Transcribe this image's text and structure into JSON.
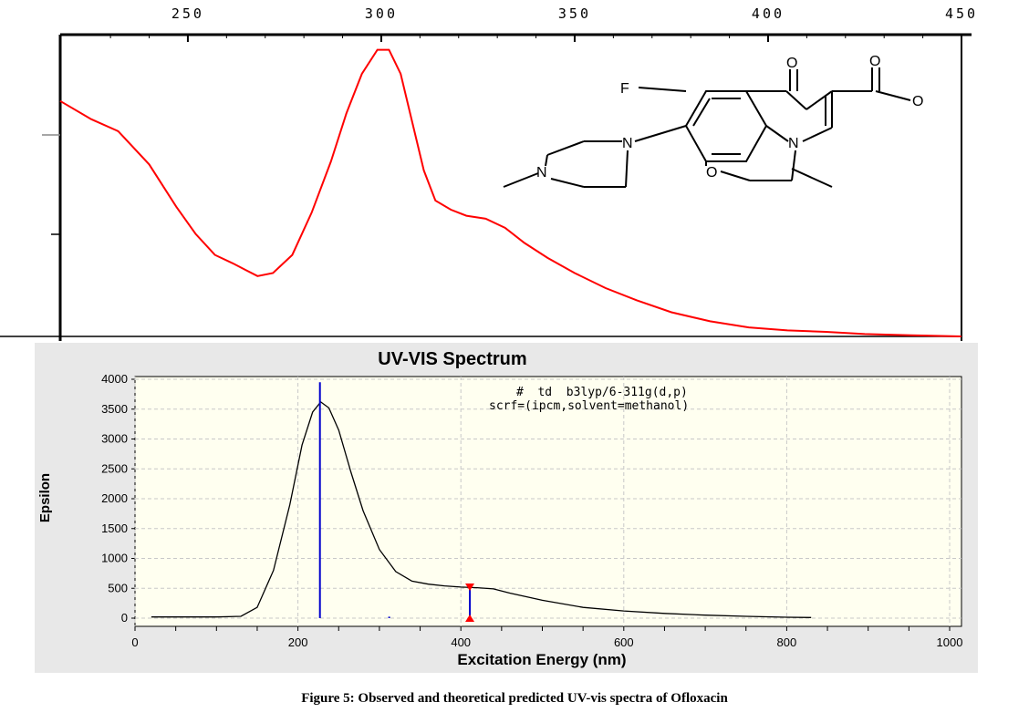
{
  "caption": "Figure 5: Observed and theoretical predicted UV-vis spectra of Ofloxacin",
  "chart_data": [
    {
      "type": "line",
      "title": "",
      "xlabel": "",
      "ylabel": "",
      "xlim": [
        217,
        450
      ],
      "ylim": [
        0,
        1
      ],
      "x_ticks": [
        "250",
        "300",
        "350",
        "400",
        "450"
      ],
      "grid": false,
      "series": [
        {
          "color": "#ff0000",
          "x": [
            217,
            225,
            232,
            240,
            247,
            252,
            257,
            262,
            265,
            268,
            272,
            277,
            282,
            287,
            291,
            295,
            299,
            302,
            305,
            308,
            311,
            314,
            318,
            322,
            327,
            332,
            337,
            343,
            350,
            358,
            366,
            375,
            385,
            395,
            405,
            415,
            425,
            437,
            450
          ],
          "y": [
            0.78,
            0.72,
            0.68,
            0.57,
            0.43,
            0.34,
            0.27,
            0.24,
            0.22,
            0.2,
            0.21,
            0.27,
            0.41,
            0.58,
            0.74,
            0.87,
            0.95,
            0.95,
            0.87,
            0.71,
            0.55,
            0.45,
            0.42,
            0.4,
            0.39,
            0.36,
            0.31,
            0.26,
            0.21,
            0.16,
            0.12,
            0.08,
            0.05,
            0.03,
            0.02,
            0.015,
            0.008,
            0.004,
            0.0
          ]
        }
      ]
    },
    {
      "type": "line",
      "title": "UV-VIS Spectrum",
      "xlabel": "Excitation Energy (nm)",
      "ylabel": "Epsilon",
      "xlim": [
        0,
        1000
      ],
      "ylim": [
        0,
        4000
      ],
      "x_ticks": [
        0,
        200,
        400,
        600,
        800,
        1000
      ],
      "y_ticks": [
        0,
        500,
        1000,
        1500,
        2000,
        2500,
        3000,
        3500,
        4000
      ],
      "grid": true,
      "annotation": [
        "#  td  b3lyp/6-311g(d,p)",
        "scrf=(ipcm,solvent=methanol)"
      ],
      "series": [
        {
          "color": "#000000",
          "x": [
            20,
            60,
            100,
            130,
            150,
            170,
            190,
            205,
            218,
            228,
            238,
            250,
            265,
            280,
            300,
            320,
            340,
            360,
            380,
            400,
            420,
            440,
            460,
            500,
            550,
            600,
            650,
            700,
            750,
            800,
            830
          ],
          "y": [
            20,
            20,
            20,
            30,
            180,
            800,
            1900,
            2900,
            3450,
            3620,
            3520,
            3150,
            2450,
            1800,
            1150,
            780,
            620,
            570,
            540,
            520,
            510,
            490,
            420,
            300,
            180,
            120,
            80,
            50,
            30,
            15,
            10
          ]
        }
      ],
      "sticks": [
        {
          "x": 227,
          "y": 3950,
          "color": "#0000cc"
        },
        {
          "x": 312,
          "y": 25,
          "color": "#0000cc"
        },
        {
          "x": 411,
          "y": 550,
          "color": "#0000cc"
        }
      ],
      "marker": {
        "x": 411,
        "y": 550,
        "color": "#ff0000"
      }
    }
  ],
  "molecule": {
    "labels": {
      "f": "F",
      "o_keto": "O",
      "o_acid1": "O",
      "o_acid2": "O",
      "n_ring": "N",
      "n_pip1": "N",
      "n_pip2": "N",
      "o_ether": "O"
    }
  }
}
